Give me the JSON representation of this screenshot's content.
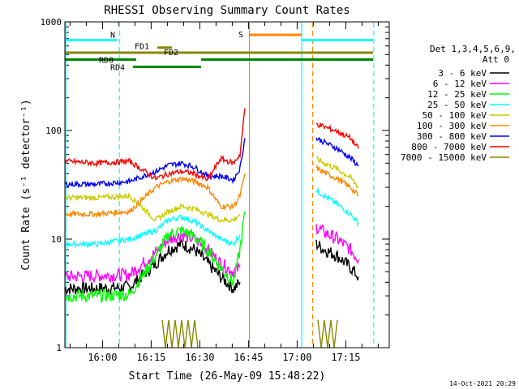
{
  "chart_data": {
    "type": "line",
    "title": "RHESSI Observing Summary Count Rates",
    "xlabel": "Start Time (26-May-09 15:48:22)",
    "ylabel": "Count Rate (s⁻¹ detector⁻¹)",
    "y_scale": "log",
    "ylim": [
      1,
      1000
    ],
    "x_units": "minutes after 15:48:22",
    "xlim": [
      0,
      100
    ],
    "x_ticks": [
      {
        "x": 11.6,
        "label": "16:00"
      },
      {
        "x": 26.6,
        "label": "16:15"
      },
      {
        "x": 41.6,
        "label": "16:30"
      },
      {
        "x": 56.6,
        "label": "16:45"
      },
      {
        "x": 71.6,
        "label": "17:00"
      },
      {
        "x": 86.6,
        "label": "17:15"
      }
    ],
    "y_ticks": [
      {
        "y": 1,
        "label": "1"
      },
      {
        "y": 10,
        "label": "10"
      },
      {
        "y": 100,
        "label": "100"
      },
      {
        "y": 1000,
        "label": "1000"
      }
    ],
    "legend": {
      "placement": "right",
      "header_line1": "Det 1,3,4,5,6,9,",
      "header_line2": "Att 0"
    },
    "series": [
      {
        "name": "3 - 6 keV",
        "color": "#000000",
        "segments": [
          {
            "x": [
              0,
              10,
              20,
              28,
              32,
              36,
              40,
              44,
              48,
              52,
              54
            ],
            "y": [
              3.5,
              3.5,
              3.6,
              6,
              8,
              9,
              8,
              6,
              4.5,
              3.5,
              4
            ]
          },
          {
            "x": [
              77.5,
              80,
              84,
              88,
              90.5
            ],
            "y": [
              9,
              8,
              7,
              5.5,
              4.5
            ]
          }
        ]
      },
      {
        "name": "6 - 12 keV",
        "color": "#ff00ff",
        "segments": [
          {
            "x": [
              0,
              10,
              20,
              28,
              32,
              36,
              40,
              44,
              48,
              52,
              54
            ],
            "y": [
              4.5,
              4.6,
              4.7,
              7.5,
              10,
              11,
              10,
              8,
              6,
              5,
              5.5
            ]
          },
          {
            "x": [
              77.5,
              80,
              84,
              88,
              90.5
            ],
            "y": [
              13,
              11.5,
              10,
              8,
              6.5
            ]
          }
        ]
      },
      {
        "name": "12 - 25 keV",
        "color": "#00ff00",
        "segments": [
          {
            "x": [
              0,
              10,
              20,
              28,
              32,
              36,
              40,
              44,
              48,
              52,
              54,
              55.5
            ],
            "y": [
              3,
              3,
              3.1,
              7,
              11,
              12,
              10.5,
              8,
              5.5,
              4,
              8,
              18
            ]
          }
        ]
      },
      {
        "name": "25 - 50 keV",
        "color": "#00ffff",
        "segments": [
          {
            "x": [
              0,
              10,
              20,
              28,
              32,
              36,
              40,
              44,
              48,
              52,
              54
            ],
            "y": [
              9,
              9,
              10,
              12,
              15,
              16,
              14.5,
              12,
              10,
              9,
              11
            ]
          },
          {
            "x": [
              77.5,
              80,
              84,
              88,
              90.5
            ],
            "y": [
              28,
              25,
              21,
              17,
              14
            ]
          }
        ]
      },
      {
        "name": "50 - 100 keV",
        "color": "#cccc00",
        "segments": [
          {
            "x": [
              0,
              10,
              20,
              28,
              32,
              36,
              40,
              44,
              48,
              52,
              54
            ],
            "y": [
              24,
              24,
              25,
              15,
              18,
              20,
              19,
              17,
              15,
              15,
              17
            ]
          },
          {
            "x": [
              77.5,
              80,
              84,
              88,
              90.5
            ],
            "y": [
              55,
              50,
              44,
              37,
              30
            ]
          }
        ]
      },
      {
        "name": "100 - 300 keV",
        "color": "#ff8800",
        "segments": [
          {
            "x": [
              0,
              10,
              20,
              28,
              32,
              36,
              40,
              44,
              48,
              52,
              54,
              55.5
            ],
            "y": [
              17,
              17,
              18,
              30,
              34,
              36,
              34,
              30,
              20,
              20,
              25,
              40
            ]
          },
          {
            "x": [
              77.5,
              80,
              84,
              88,
              90.5
            ],
            "y": [
              45,
              41,
              36,
              30,
              25
            ]
          }
        ]
      },
      {
        "name": "300 - 800 keV",
        "color": "#0000ff",
        "segments": [
          {
            "x": [
              0,
              10,
              20,
              28,
              32,
              36,
              40,
              44,
              48,
              52,
              54,
              55.5
            ],
            "y": [
              32,
              32,
              34,
              42,
              48,
              50,
              46,
              38,
              38,
              35,
              45,
              85
            ]
          },
          {
            "x": [
              77.5,
              80,
              84,
              88,
              90.5
            ],
            "y": [
              85,
              78,
              68,
              56,
              47
            ]
          }
        ]
      },
      {
        "name": "800 - 7000 keV",
        "color": "#ff0000",
        "segments": [
          {
            "x": [
              0,
              10,
              20,
              28,
              32,
              36,
              40,
              44,
              48,
              52,
              54,
              55.5
            ],
            "y": [
              52,
              50,
              52,
              36,
              40,
              42,
              40,
              35,
              55,
              50,
              60,
              160
            ]
          },
          {
            "x": [
              77.5,
              80,
              84,
              88,
              90.5
            ],
            "y": [
              115,
              108,
              98,
              85,
              68
            ]
          }
        ]
      },
      {
        "name": "7000 - 15000 keV",
        "color": "#888800",
        "segments": [
          {
            "x": [
              30,
              31,
              32,
              33,
              34,
              35,
              36,
              37,
              38,
              39,
              40,
              41
            ],
            "y": [
              1.8,
              1,
              1.8,
              1,
              1.8,
              1,
              1.8,
              1,
              1.8,
              1,
              1.8,
              1
            ]
          },
          {
            "x": [
              78,
              79,
              80,
              81,
              82,
              83,
              84
            ],
            "y": [
              1.8,
              1,
              1.8,
              1,
              1.8,
              1,
              1.8
            ]
          }
        ]
      }
    ],
    "flag_bars": [
      {
        "label": "N",
        "color": "#00ffff",
        "y": 680,
        "spans": [
          [
            0,
            16
          ],
          [
            73,
            95
          ]
        ]
      },
      {
        "label": "S",
        "color": "#ff8800",
        "y": 760,
        "spans": [
          [
            57,
            73
          ]
        ]
      },
      {
        "label": "FD1",
        "color": "#888800",
        "y": 580,
        "spans": [
          [
            28.5,
            33
          ]
        ]
      },
      {
        "label": "FD2",
        "color": "#888800",
        "y": 520,
        "spans": [
          [
            0,
            95
          ]
        ]
      },
      {
        "label": "RD0",
        "color": "#008800",
        "y": 450,
        "spans": [
          [
            0,
            22
          ],
          [
            42,
            95
          ]
        ]
      },
      {
        "label": "RD4",
        "color": "#008800",
        "y": 385,
        "spans": [
          [
            21,
            42
          ]
        ]
      }
    ],
    "vlines": [
      {
        "x": 0.3,
        "color": "#00ffff",
        "style": "solid"
      },
      {
        "x": 16.8,
        "color": "#00ffff",
        "style": "dashed"
      },
      {
        "x": 56.9,
        "color": "#ff8800",
        "style": "solid"
      },
      {
        "x": 73.0,
        "color": "#00ffff",
        "style": "solid"
      },
      {
        "x": 76.4,
        "color": "#ff8800",
        "style": "dashed"
      },
      {
        "x": 95.2,
        "color": "#00ffff",
        "style": "dashed"
      }
    ],
    "grid": false
  },
  "footer": {
    "timestamp": "14-Oct-2021 20:29"
  }
}
